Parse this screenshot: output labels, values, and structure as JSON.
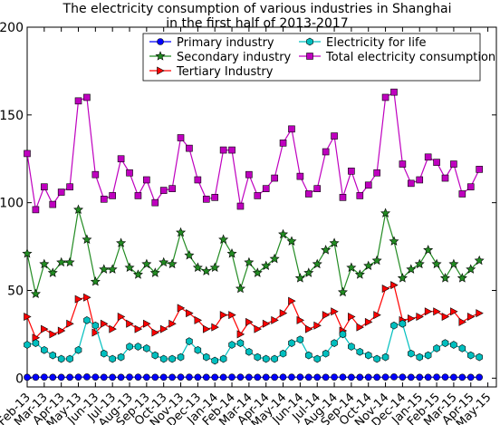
{
  "chart_data": {
    "type": "line",
    "title": "The electricity consumption of various industries in Shanghai\nin the first half of 2013-2017",
    "x": [
      0,
      1,
      2,
      3,
      4,
      5,
      6,
      7,
      8,
      9,
      10,
      11,
      12,
      13,
      14,
      15,
      16,
      17,
      18,
      19,
      20,
      21,
      22,
      23,
      24,
      25,
      26,
      27,
      28,
      29,
      30,
      31,
      32,
      33,
      34,
      35,
      36,
      37,
      38,
      39,
      40,
      41,
      42,
      43,
      44,
      45,
      46,
      47,
      48,
      49,
      50,
      51,
      52,
      53
    ],
    "xlim": [
      0,
      55
    ],
    "xticks": [
      {
        "value": 0,
        "label": "Feb-13"
      },
      {
        "value": 2,
        "label": "Mar-13"
      },
      {
        "value": 4,
        "label": "Apr-13"
      },
      {
        "value": 6,
        "label": "May-13"
      },
      {
        "value": 8,
        "label": "Jun-13"
      },
      {
        "value": 10,
        "label": "Jul-13"
      },
      {
        "value": 12,
        "label": "Aug-13"
      },
      {
        "value": 14,
        "label": "Sep-13"
      },
      {
        "value": 16,
        "label": "Oct-13"
      },
      {
        "value": 18,
        "label": "Nov-13"
      },
      {
        "value": 20,
        "label": "Dec-13"
      },
      {
        "value": 22,
        "label": "Jan-14"
      },
      {
        "value": 24,
        "label": "Feb-14"
      },
      {
        "value": 26,
        "label": "Mar-14"
      },
      {
        "value": 28,
        "label": "Apr-14"
      },
      {
        "value": 30,
        "label": "May-14"
      },
      {
        "value": 32,
        "label": "Jun-14"
      },
      {
        "value": 34,
        "label": "Jul-14"
      },
      {
        "value": 36,
        "label": "Aug-14"
      },
      {
        "value": 38,
        "label": "Sep-14"
      },
      {
        "value": 40,
        "label": "Oct-14"
      },
      {
        "value": 42,
        "label": "Nov-14"
      },
      {
        "value": 44,
        "label": "Dec-14"
      },
      {
        "value": 46,
        "label": "Jan-15"
      },
      {
        "value": 48,
        "label": "Feb-15"
      },
      {
        "value": 50,
        "label": "Mar-15"
      },
      {
        "value": 52,
        "label": "Apr-15"
      },
      {
        "value": 54,
        "label": "May-15"
      }
    ],
    "ylim": [
      -5,
      200
    ],
    "yticks": [
      0,
      50,
      100,
      150,
      200
    ],
    "series": [
      {
        "name": "Primary industry",
        "color": "#0000ff",
        "marker": "circle",
        "values": [
          0.5,
          0.5,
          0.6,
          0.5,
          0.5,
          0.5,
          0.6,
          0.7,
          0.6,
          0.5,
          0.5,
          0.5,
          0.6,
          0.6,
          0.5,
          0.5,
          0.5,
          0.5,
          0.6,
          0.6,
          0.5,
          0.5,
          0.5,
          0.5,
          0.6,
          0.6,
          0.5,
          0.5,
          0.5,
          0.5,
          0.6,
          0.6,
          0.6,
          0.5,
          0.5,
          0.5,
          0.6,
          0.6,
          0.5,
          0.5,
          0.5,
          0.5,
          0.6,
          0.7,
          0.6,
          0.5,
          0.5,
          0.5,
          0.6,
          0.6,
          0.5,
          0.5,
          0.5,
          0.5
        ]
      },
      {
        "name": "Secondary industry",
        "color": "#228b22",
        "marker": "star",
        "values": [
          71,
          48,
          65,
          60,
          66,
          66,
          96,
          79,
          55,
          62,
          62,
          77,
          63,
          59,
          65,
          60,
          66,
          65,
          83,
          70,
          63,
          61,
          63,
          79,
          71,
          51,
          66,
          60,
          64,
          68,
          82,
          78,
          57,
          60,
          65,
          73,
          77,
          49,
          63,
          59,
          64,
          67,
          94,
          78,
          57,
          62,
          65,
          73,
          65,
          57,
          65,
          57,
          62,
          67
        ]
      },
      {
        "name": "Tertiary Industry",
        "color": "#ff0000",
        "marker": "triangle",
        "values": [
          35,
          23,
          28,
          25,
          27,
          31,
          45,
          46,
          26,
          31,
          28,
          35,
          31,
          28,
          31,
          26,
          28,
          31,
          40,
          37,
          33,
          28,
          29,
          36,
          36,
          25,
          32,
          28,
          31,
          33,
          37,
          44,
          33,
          28,
          30,
          36,
          38,
          27,
          35,
          29,
          32,
          36,
          51,
          53,
          33,
          34,
          35,
          38,
          38,
          35,
          38,
          32,
          35,
          37
        ]
      },
      {
        "name": "Electricity for life",
        "color": "#00bfbf",
        "marker": "hexagon",
        "values": [
          19,
          20,
          16,
          13,
          11,
          11,
          16,
          33,
          30,
          14,
          11,
          12,
          18,
          18,
          17,
          13,
          11,
          11,
          12,
          21,
          16,
          12,
          10,
          11,
          19,
          20,
          15,
          12,
          11,
          11,
          14,
          20,
          22,
          13,
          11,
          14,
          20,
          25,
          18,
          15,
          13,
          11,
          12,
          30,
          31,
          14,
          12,
          13,
          17,
          20,
          19,
          17,
          13,
          12
        ]
      },
      {
        "name": "Total electricity consumption",
        "color": "#bf00bf",
        "marker": "square",
        "values": [
          128,
          96,
          109,
          99,
          106,
          109,
          158,
          160,
          116,
          102,
          104,
          125,
          117,
          104,
          113,
          100,
          107,
          108,
          137,
          131,
          113,
          102,
          103,
          130,
          130,
          98,
          116,
          104,
          108,
          114,
          134,
          142,
          115,
          105,
          108,
          129,
          138,
          103,
          118,
          104,
          110,
          117,
          160,
          163,
          122,
          111,
          113,
          126,
          123,
          114,
          122,
          105,
          109,
          119
        ]
      }
    ]
  }
}
